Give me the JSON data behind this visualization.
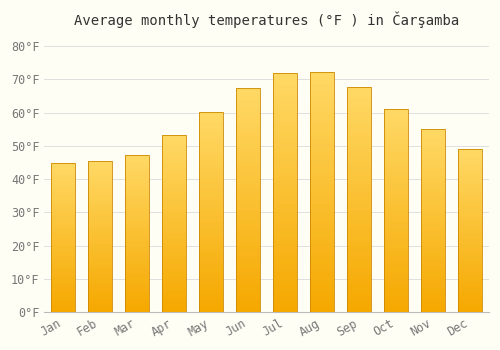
{
  "title": "Average monthly temperatures (°F ) in Čarşamba",
  "months": [
    "Jan",
    "Feb",
    "Mar",
    "Apr",
    "May",
    "Jun",
    "Jul",
    "Aug",
    "Sep",
    "Oct",
    "Nov",
    "Dec"
  ],
  "values": [
    45.0,
    45.5,
    47.3,
    53.2,
    60.1,
    67.3,
    72.0,
    72.3,
    67.8,
    61.0,
    55.0,
    49.1
  ],
  "bar_color_light": "#FFD966",
  "bar_color_dark": "#F5A800",
  "bar_edge_color": "#CC8800",
  "ytick_values": [
    0,
    10,
    20,
    30,
    40,
    50,
    60,
    70,
    80
  ],
  "ylim": [
    0,
    84
  ],
  "background_color": "#FFFEF5",
  "grid_color": "#E0E0E0",
  "title_fontsize": 10,
  "tick_fontsize": 8.5,
  "bar_width": 0.65
}
